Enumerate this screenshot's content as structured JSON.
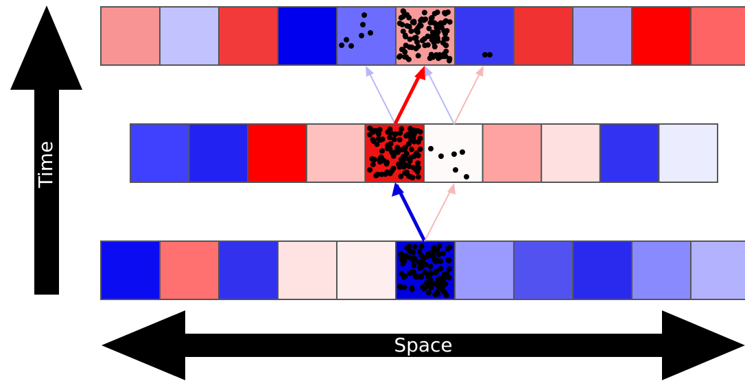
{
  "labels": {
    "time": "Time",
    "space": "Space"
  }
}
